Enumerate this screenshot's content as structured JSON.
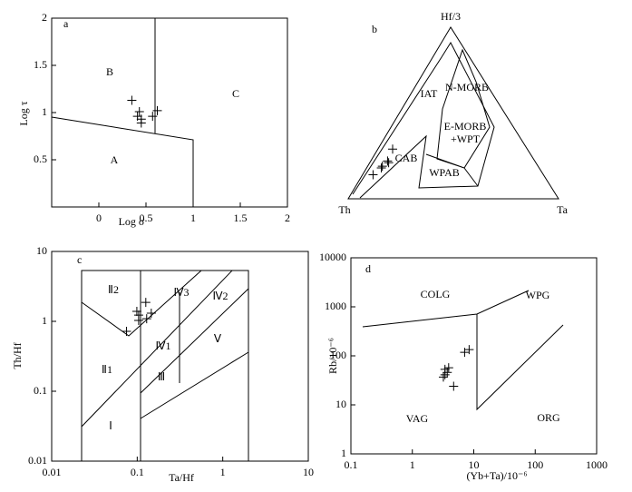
{
  "chart_data": [
    {
      "type": "scatter",
      "label": "a",
      "xlabel": "Log σ",
      "ylabel": "Log τ",
      "xlim": [
        -0.5,
        2
      ],
      "xticks": [
        0,
        0.5,
        1,
        1.5,
        2
      ],
      "ylim": [
        0,
        2
      ],
      "yticks": [
        0.5,
        1,
        1.5,
        2
      ],
      "x": [
        0.35,
        0.43,
        0.41,
        0.45,
        0.45,
        0.57,
        0.62
      ],
      "y": [
        1.13,
        1.01,
        0.96,
        0.93,
        0.89,
        0.96,
        1.02
      ],
      "annotations": [
        "A",
        "B",
        "C"
      ]
    },
    {
      "type": "ternary",
      "label": "b",
      "vertices": [
        "Hf/3",
        "Th",
        "Ta"
      ],
      "hf3": [
        0.29,
        0.22,
        0.19,
        0.18,
        0.14,
        0.21
      ],
      "th": [
        0.64,
        0.7,
        0.74,
        0.75,
        0.81,
        0.7
      ],
      "ta": [
        0.07,
        0.08,
        0.07,
        0.07,
        0.05,
        0.09
      ],
      "annotations": [
        "IAT",
        "N-MORB",
        "E-MORB",
        "+WPT",
        "CAB",
        "WPAB"
      ]
    },
    {
      "type": "scatter",
      "label": "c",
      "xlabel": "Ta/Hf",
      "ylabel": "Th/Hf",
      "xscale": "log",
      "yscale": "log",
      "xlim": [
        0.01,
        10
      ],
      "xticks": [
        0.01,
        0.1,
        1,
        10
      ],
      "ylim": [
        0.01,
        10
      ],
      "yticks": [
        0.01,
        0.1,
        1,
        10
      ],
      "x": [
        0.126,
        0.075,
        0.104,
        0.104,
        0.129,
        0.146,
        0.099
      ],
      "y": [
        1.87,
        0.72,
        1.23,
        1.03,
        1.09,
        1.31,
        1.39
      ],
      "annotations": [
        "Ⅱ2",
        "Ⅳ3",
        "Ⅳ2",
        "Ⅳ1",
        "Ⅴ",
        "Ⅱ1",
        "Ⅲ",
        "Ⅰ"
      ]
    },
    {
      "type": "scatter",
      "label": "d",
      "xlabel": "(Yb+Ta)/10⁻⁶",
      "ylabel": "Rb/10⁻⁶",
      "xscale": "log",
      "yscale": "log",
      "xlim": [
        0.1,
        1000
      ],
      "xticks": [
        0.1,
        1,
        10,
        100,
        1000
      ],
      "ylim": [
        1,
        10000
      ],
      "yticks": [
        1,
        10,
        100,
        1000,
        10000
      ],
      "x": [
        3.2,
        3.4,
        3.7,
        3.9,
        4.7,
        7.1,
        8.4,
        3.4
      ],
      "y": [
        37,
        53,
        46,
        57,
        24,
        118,
        134,
        41
      ],
      "annotations": [
        "COLG",
        "WPG",
        "VAG",
        "ORG"
      ]
    }
  ]
}
